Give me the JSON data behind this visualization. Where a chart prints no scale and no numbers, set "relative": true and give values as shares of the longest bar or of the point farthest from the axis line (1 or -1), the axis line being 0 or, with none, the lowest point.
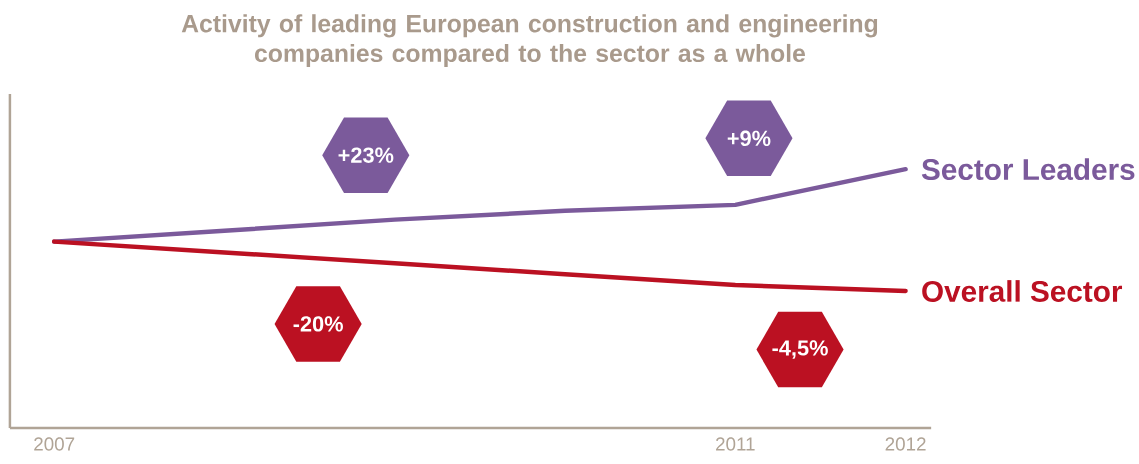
{
  "chart_data": {
    "type": "line",
    "title": "Activity of leading European construction and engineering companies compared to the sector as a whole",
    "x": [
      2007,
      2008,
      2009,
      2010,
      2011,
      2012
    ],
    "xlim": [
      2006.74,
      2012.15
    ],
    "xticks": [
      2007,
      2011,
      2012
    ],
    "relative": true,
    "legend": false,
    "grid": false,
    "marker": "none",
    "line_style": "solid",
    "series": [
      {
        "name": "Sector Leaders",
        "color": "#7b5a9b",
        "values": [
          0.72,
          0.762,
          0.805,
          0.839,
          0.862,
          1
        ]
      },
      {
        "name": "Overall Sector",
        "color": "#bb1122",
        "values": [
          0.72,
          0.678,
          0.636,
          0.594,
          0.552,
          0.529
        ]
      }
    ],
    "annotations": [
      "+23%",
      "+9%",
      "-20%",
      "-4,5%"
    ]
  }
}
